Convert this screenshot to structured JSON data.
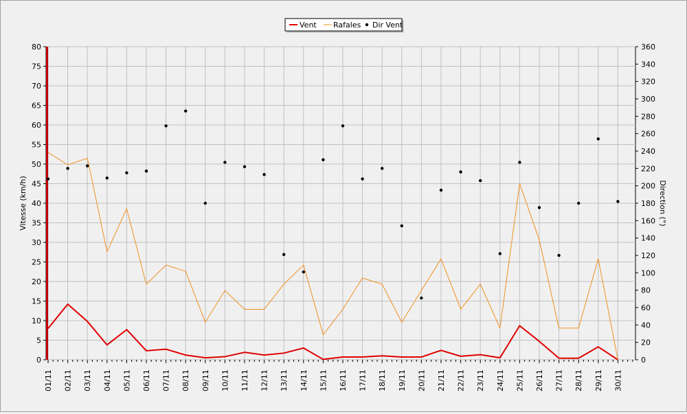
{
  "chart_data": {
    "type": "line",
    "categories": [
      "01/11",
      "02/11",
      "03/11",
      "04/11",
      "05/11",
      "06/11",
      "07/11",
      "08/11",
      "09/11",
      "10/11",
      "11/11",
      "12/11",
      "13/11",
      "14/11",
      "15/11",
      "16/11",
      "17/11",
      "18/11",
      "19/11",
      "20/11",
      "21/11",
      "22/11",
      "23/11",
      "24/11",
      "25/11",
      "26/11",
      "27/11",
      "28/11",
      "29/11",
      "30/11"
    ],
    "series": [
      {
        "name": "Vent",
        "axis": "left",
        "style": "line",
        "color": "#e00000",
        "values": [
          8,
          14.2,
          9.8,
          3.8,
          7.7,
          2.3,
          2.7,
          1.2,
          0.5,
          0.8,
          1.9,
          1.2,
          1.7,
          3,
          0.1,
          0.7,
          0.7,
          1,
          0.7,
          0.7,
          2.4,
          0.9,
          1.3,
          0.5,
          8.7,
          4.7,
          0.4,
          0.4,
          3.3,
          0
        ]
      },
      {
        "name": "Rafales",
        "axis": "left",
        "style": "line",
        "color": "#f09020",
        "values": [
          53,
          49.8,
          51.5,
          27.6,
          38.6,
          19.3,
          24.2,
          22.6,
          9.6,
          17.7,
          12.9,
          12.9,
          19.3,
          24.2,
          6.4,
          12.9,
          20.9,
          19.3,
          9.6,
          17.7,
          25.8,
          12.9,
          19.3,
          8.1,
          45,
          30.6,
          8.1,
          8.1,
          25.8,
          0
        ]
      },
      {
        "name": "Dir Vent",
        "axis": "right",
        "style": "dots",
        "color": "#000000",
        "values": [
          208,
          220,
          223,
          209,
          215,
          217,
          269,
          286,
          180,
          227,
          222,
          213,
          121,
          101,
          230,
          269,
          208,
          220,
          154,
          71,
          195,
          216,
          206,
          122,
          227,
          175,
          120,
          180,
          254,
          182
        ]
      }
    ],
    "ylabel": "Vitesse (km/h)",
    "y2label": "Direction (°)",
    "ylim": [
      0,
      80
    ],
    "yticks": [
      0,
      5,
      10,
      15,
      20,
      25,
      30,
      35,
      40,
      45,
      50,
      55,
      60,
      65,
      70,
      75,
      80
    ],
    "y2lim": [
      0,
      360
    ],
    "y2ticks": [
      0,
      20,
      40,
      60,
      80,
      100,
      120,
      140,
      160,
      180,
      200,
      220,
      240,
      260,
      280,
      300,
      320,
      340,
      360
    ],
    "grid": true,
    "legend_position": "top-center",
    "legend": [
      "Vent",
      "Rafales",
      "Dir Vent"
    ],
    "plot_background": "#f0f0f0",
    "grid_color": "#c0c0c0",
    "y_axis_bar_color": "#c00000"
  }
}
